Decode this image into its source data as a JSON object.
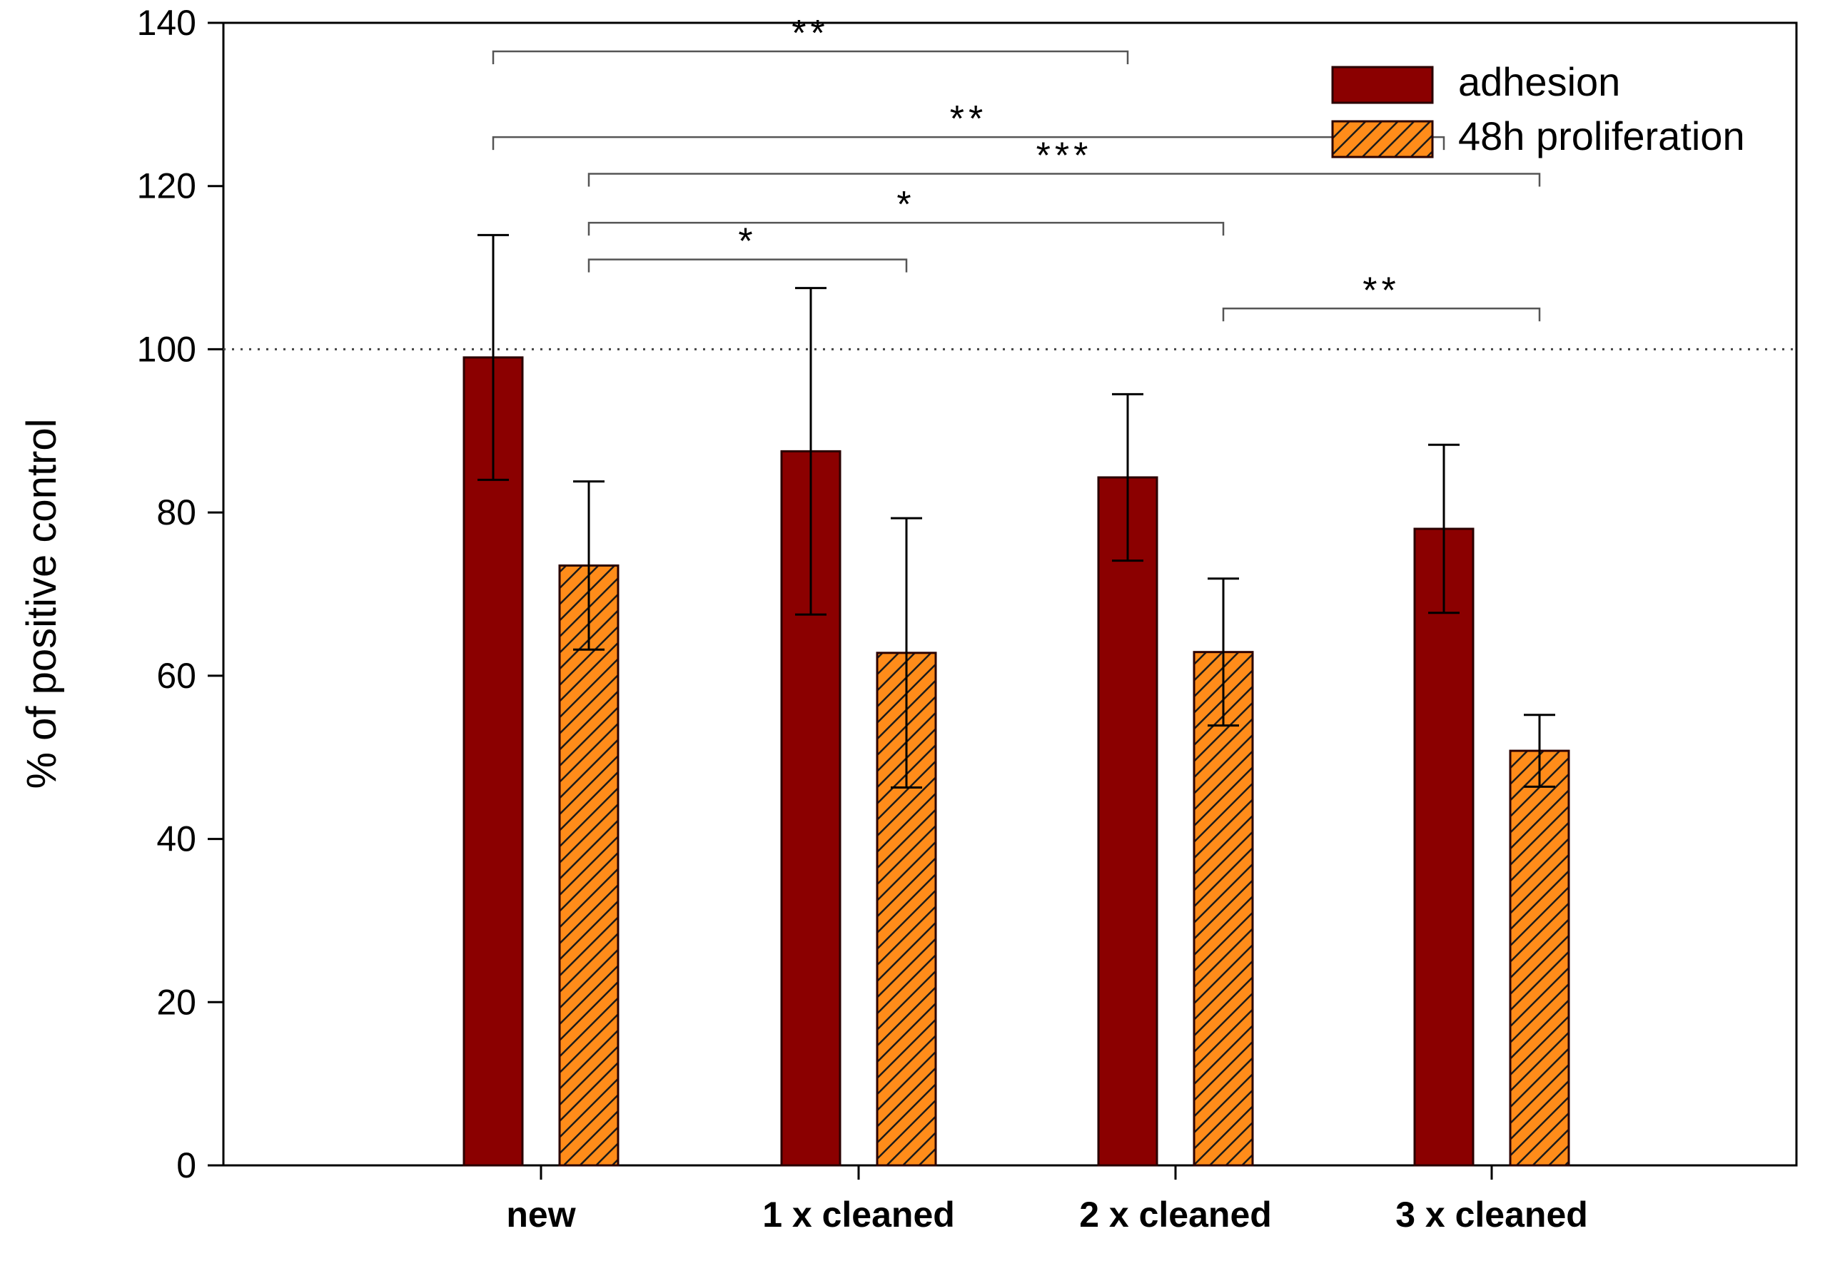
{
  "chart_data": {
    "type": "bar",
    "ylabel": "% of positive control",
    "xlabel": "",
    "ylim": [
      0,
      140
    ],
    "yticks": [
      0,
      20,
      40,
      60,
      80,
      100,
      120,
      140
    ],
    "reference_line": 100,
    "categories": [
      "new",
      "1 x cleaned",
      "2 x cleaned",
      "3 x cleaned"
    ],
    "series": [
      {
        "name": "adhesion",
        "color": "#8b0000",
        "pattern": "solid",
        "values": [
          99,
          87.5,
          84.3,
          78
        ],
        "errors": [
          15,
          20,
          10.2,
          10.3
        ]
      },
      {
        "name": "48h proliferation",
        "color": "#ff8c1a",
        "pattern": "hatched",
        "values": [
          73.5,
          62.8,
          62.9,
          50.8
        ],
        "errors": [
          10.3,
          16.5,
          9,
          4.4
        ]
      }
    ],
    "significance": [
      {
        "label": "**",
        "from": [
          0,
          0
        ],
        "to": [
          2,
          0
        ],
        "y": 136.5
      },
      {
        "label": "**",
        "from": [
          0,
          0
        ],
        "to": [
          3,
          0
        ],
        "y": 126
      },
      {
        "label": "***",
        "from": [
          0,
          1
        ],
        "to": [
          3,
          1
        ],
        "y": 121.5
      },
      {
        "label": "*",
        "from": [
          0,
          1
        ],
        "to": [
          2,
          1
        ],
        "y": 115.5
      },
      {
        "label": "*",
        "from": [
          0,
          1
        ],
        "to": [
          1,
          1
        ],
        "y": 111
      },
      {
        "label": "**",
        "from": [
          2,
          1
        ],
        "to": [
          3,
          1
        ],
        "y": 105
      }
    ],
    "legend_position": "top-right"
  }
}
